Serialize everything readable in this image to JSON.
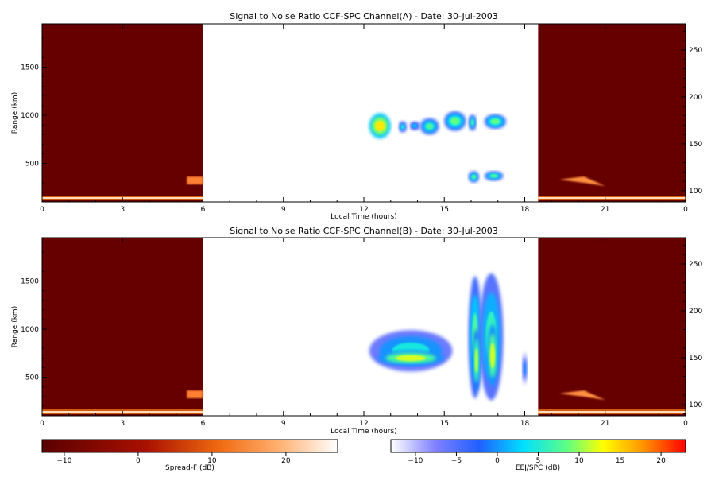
{
  "chart_data": [
    {
      "type": "heatmap",
      "title": "Signal to Noise Ratio CCF-SPC Channel(A) - Date: 30-Jul-2003",
      "xlabel": "Local Time (hours)",
      "ylabel": "Range (km)",
      "x_ticks": [
        "0",
        "3",
        "6",
        "9",
        "12",
        "15",
        "18",
        "21",
        "0"
      ],
      "y_ticks": [
        "500",
        "1000",
        "1500"
      ],
      "y2_ticks": [
        "100",
        "150",
        "200",
        "250"
      ],
      "xlim": [
        0,
        24
      ],
      "ylim": [
        100,
        1950
      ],
      "y2lim": [
        88,
        278
      ],
      "spread_f_intervals_hours": [
        [
          0,
          6
        ],
        [
          18.5,
          24
        ]
      ],
      "echo_patches": [
        {
          "t0": 12.2,
          "t1": 13.0,
          "r0": 760,
          "r1": 1020,
          "snr_db": 12
        },
        {
          "t0": 13.3,
          "t1": 13.6,
          "r0": 820,
          "r1": 940,
          "snr_db": 4
        },
        {
          "t0": 13.7,
          "t1": 14.1,
          "r0": 840,
          "r1": 940,
          "snr_db": 2
        },
        {
          "t0": 14.1,
          "t1": 14.8,
          "r0": 800,
          "r1": 970,
          "snr_db": 6
        },
        {
          "t0": 15.0,
          "t1": 15.8,
          "r0": 840,
          "r1": 1040,
          "snr_db": 7
        },
        {
          "t0": 15.9,
          "t1": 16.2,
          "r0": 840,
          "r1": 1010,
          "snr_db": 5
        },
        {
          "t0": 16.5,
          "t1": 17.3,
          "r0": 860,
          "r1": 1010,
          "snr_db": 7
        },
        {
          "t0": 15.9,
          "t1": 16.3,
          "r0": 300,
          "r1": 420,
          "snr_db": 6
        },
        {
          "t0": 16.5,
          "t1": 17.2,
          "r0": 320,
          "r1": 420,
          "snr_db": 6
        }
      ]
    },
    {
      "type": "heatmap",
      "title": "Signal to Noise Ratio CCF-SPC Channel(B) - Date: 30-Jul-2003",
      "xlabel": "Local Time (hours)",
      "ylabel": "Range (km)",
      "x_ticks": [
        "0",
        "3",
        "6",
        "9",
        "12",
        "15",
        "18",
        "21",
        "0"
      ],
      "y_ticks": [
        "500",
        "1000",
        "1500"
      ],
      "y2_ticks": [
        "100",
        "150",
        "200",
        "250"
      ],
      "xlim": [
        0,
        24
      ],
      "ylim": [
        100,
        1950
      ],
      "y2lim": [
        88,
        278
      ],
      "spread_f_intervals_hours": [
        [
          0,
          6
        ],
        [
          18.5,
          24
        ]
      ],
      "echo_patches": [
        {
          "t0": 12.2,
          "t1": 15.3,
          "r0": 560,
          "r1": 990,
          "snr_db": 4
        },
        {
          "t0": 12.5,
          "t1": 15.0,
          "r0": 620,
          "r1": 780,
          "snr_db": 10
        },
        {
          "t0": 15.9,
          "t1": 16.4,
          "r0": 280,
          "r1": 1550,
          "snr_db": 6
        },
        {
          "t0": 16.3,
          "t1": 17.2,
          "r0": 260,
          "r1": 1580,
          "snr_db": 5
        },
        {
          "t0": 16.05,
          "t1": 16.35,
          "r0": 350,
          "r1": 1000,
          "snr_db": 9
        },
        {
          "t0": 16.6,
          "t1": 17.0,
          "r0": 400,
          "r1": 1050,
          "snr_db": 10
        },
        {
          "t0": 17.9,
          "t1": 18.1,
          "r0": 420,
          "r1": 760,
          "snr_db": 0
        }
      ]
    }
  ],
  "colorbars": [
    {
      "label": "Spread-F (dB)",
      "ticks": [
        "-10",
        "0",
        "10",
        "20"
      ],
      "range": [
        -13,
        27
      ]
    },
    {
      "label": "EEJ/SPC (dB)",
      "ticks": [
        "-10",
        "-5",
        "0",
        "5",
        "10",
        "15",
        "20"
      ],
      "range": [
        -13,
        23
      ]
    }
  ],
  "colors": {
    "spread_f_background": "#660000",
    "spread_f_high": "#ffffff",
    "eej_low": "#ffffff",
    "eej_high": "#ff0000"
  }
}
